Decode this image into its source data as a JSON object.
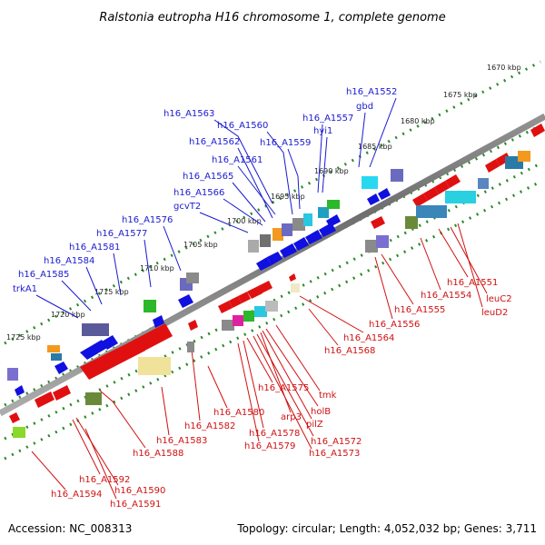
{
  "title": "Ralstonia eutropha H16 chromosome 1, complete genome",
  "accession": "Accession: NC_008313",
  "summary": "Topology: circular; Length: 4,052,032 bp; Genes: 3,711",
  "scale_labels": [
    "1670 kbp",
    "1675 kbp",
    "1680 kbp",
    "1685 kbp",
    "1690 kbp",
    "1695 kbp",
    "1700 kbp",
    "1705 kbp",
    "1710 kbp",
    "1715 kbp",
    "1720 kbp",
    "1725 kbp"
  ],
  "upper_gene_labels": [
    "trkA1",
    "h16_A1585",
    "h16_A1584",
    "h16_A1581",
    "h16_A1577",
    "h16_A1576",
    "gcvT2",
    "h16_A1566",
    "h16_A1565",
    "h16_A1561",
    "h16_A1562",
    "h16_A1563",
    "h16_A1560",
    "h16_A1559",
    "h16_A1557",
    "hyi1",
    "gbd",
    "h16_A1552"
  ],
  "lower_gene_labels": [
    "h16_A1551",
    "leuC2",
    "leuD2",
    "h16_A1554",
    "h16_A1555",
    "h16_A1556",
    "h16_A1564",
    "h16_A1568",
    "tmk",
    "holB",
    "pilZ",
    "h16_A1572",
    "h16_A1573",
    "h16_A1575",
    "arp3",
    "h16_A1578",
    "h16_A1579",
    "h16_A1580",
    "h16_A1582",
    "h16_A1583",
    "h16_A1588",
    "h16_A1592",
    "h16_A1590",
    "h16_A1591",
    "h16_A1594"
  ],
  "colors": {
    "backbone": "#8a8a8a",
    "forward_strand": "#1010e0",
    "reverse_strand": "#e01010",
    "tick": "#2a8a2a",
    "upper_label": "#1a1ad0",
    "lower_label": "#d01010"
  }
}
